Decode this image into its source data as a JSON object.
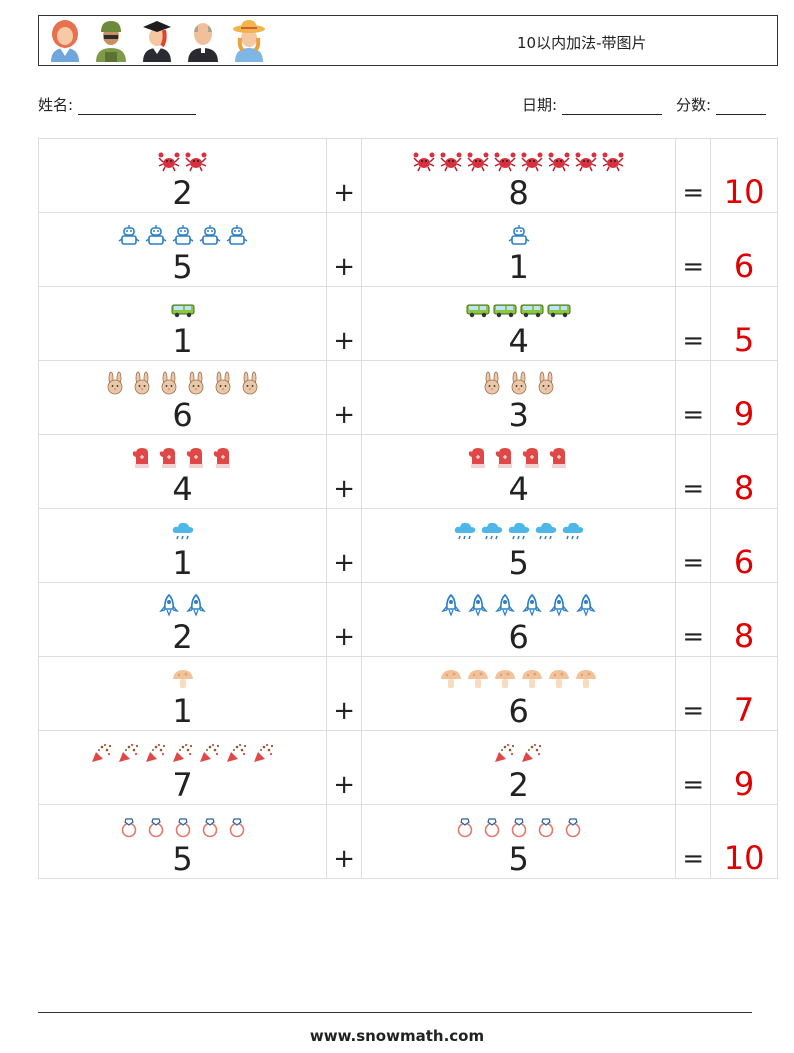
{
  "header": {
    "title": "10以内加法-带图片",
    "avatars": [
      "woman-avatar-icon",
      "soldier-avatar-icon",
      "graduate-avatar-icon",
      "priest-avatar-icon",
      "farmer-avatar-icon"
    ]
  },
  "meta": {
    "name_label": "姓名:",
    "date_label": "日期:",
    "score_label": "分数:"
  },
  "operators": {
    "plus": "+",
    "equals": "="
  },
  "rows": [
    {
      "a": "2",
      "a_icon": "crab-icon",
      "b": "8",
      "b_icon": "crab-icon",
      "answer": "10"
    },
    {
      "a": "5",
      "a_icon": "robot-icon",
      "b": "1",
      "b_icon": "robot-icon",
      "answer": "6"
    },
    {
      "a": "1",
      "a_icon": "van-icon",
      "b": "4",
      "b_icon": "van-icon",
      "answer": "5"
    },
    {
      "a": "6",
      "a_icon": "bunny-icon",
      "b": "3",
      "b_icon": "bunny-icon",
      "answer": "9"
    },
    {
      "a": "4",
      "a_icon": "mitten-icon",
      "b": "4",
      "b_icon": "mitten-icon",
      "answer": "8"
    },
    {
      "a": "1",
      "a_icon": "rain-cloud-icon",
      "b": "5",
      "b_icon": "rain-cloud-icon",
      "answer": "6"
    },
    {
      "a": "2",
      "a_icon": "rocket-icon",
      "b": "6",
      "b_icon": "rocket-icon",
      "answer": "8"
    },
    {
      "a": "1",
      "a_icon": "mushroom-icon",
      "b": "6",
      "b_icon": "mushroom-icon",
      "answer": "7"
    },
    {
      "a": "7",
      "a_icon": "party-popper-icon",
      "b": "2",
      "b_icon": "party-popper-icon",
      "answer": "9"
    },
    {
      "a": "5",
      "a_icon": "ring-icon",
      "b": "5",
      "b_icon": "ring-icon",
      "answer": "10"
    }
  ],
  "footer": {
    "text": "www.snowmath.com"
  }
}
